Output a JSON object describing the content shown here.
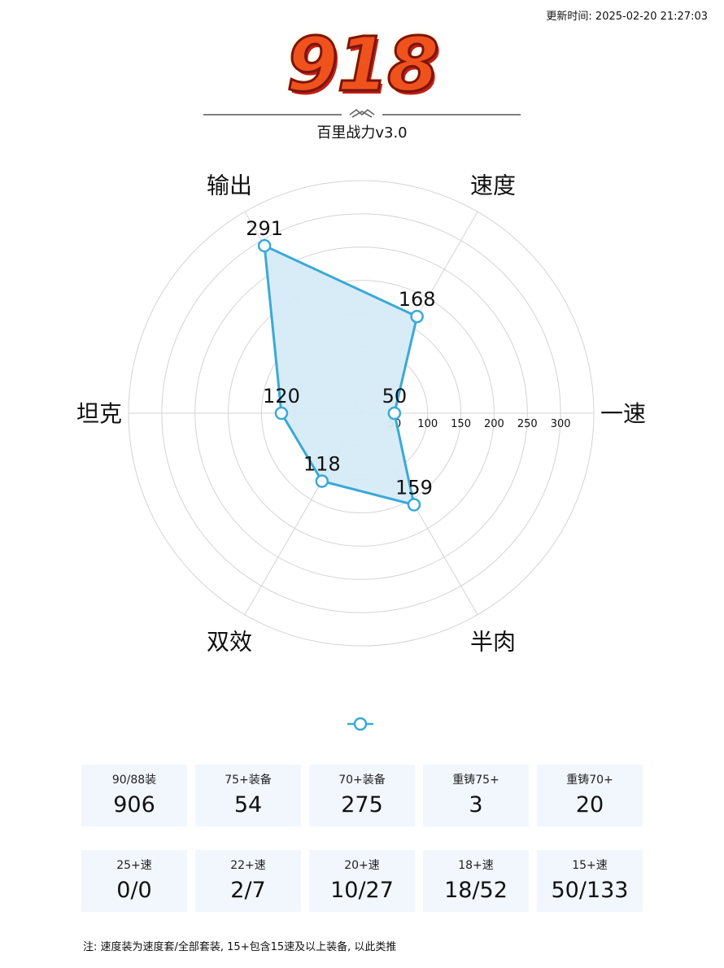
{
  "header": {
    "timestamp": "更新时间: 2025-02-20 21:27:03",
    "logo_text": "918",
    "subtitle": "百里战力v3.0"
  },
  "colors": {
    "series_line": "#3aa9d6",
    "series_fill": "#d6ebf8",
    "grid": "#d4d4d4",
    "card_bg": "#f1f7fd"
  },
  "chart_data": {
    "type": "radar",
    "axes": [
      "一速",
      "速度",
      "输出",
      "坦克",
      "双效",
      "半肉"
    ],
    "values": [
      50,
      168,
      291,
      120,
      118,
      159
    ],
    "radial_ticks": [
      50,
      100,
      150,
      200,
      250,
      300
    ],
    "rlim": [
      0,
      350
    ],
    "grid": true
  },
  "stats": {
    "row1": [
      {
        "label": "90/88装",
        "value": "906"
      },
      {
        "label": "75+装备",
        "value": "54"
      },
      {
        "label": "70+装备",
        "value": "275"
      },
      {
        "label": "重铸75+",
        "value": "3"
      },
      {
        "label": "重铸70+",
        "value": "20"
      }
    ],
    "row2": [
      {
        "label": "25+速",
        "value": "0/0"
      },
      {
        "label": "22+速",
        "value": "2/7"
      },
      {
        "label": "20+速",
        "value": "10/27"
      },
      {
        "label": "18+速",
        "value": "18/52"
      },
      {
        "label": "15+速",
        "value": "50/133"
      }
    ]
  },
  "footnote": "注: 速度装为速度套/全部套装, 15+包含15速及以上装备, 以此类推"
}
